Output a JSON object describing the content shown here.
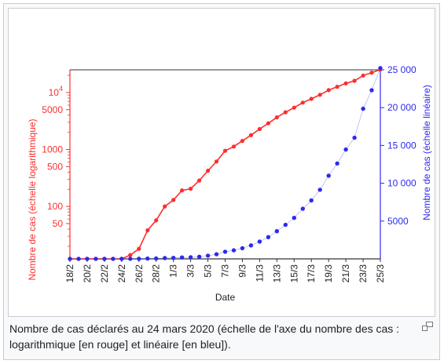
{
  "chart_data": {
    "type": "line",
    "xlabel": "Date",
    "ylabel_left": "Nombre de cas (échelle logarithmique)",
    "ylabel_right": "Nombre de cas (échelle linéaire)",
    "x_tick_labels": [
      "18/2",
      "20/2",
      "22/2",
      "24/2",
      "26/2",
      "28/2",
      "1/3",
      "3/3",
      "5/3",
      "7/3",
      "9/3",
      "11/3",
      "13/3",
      "15/3",
      "17/3",
      "19/3",
      "21/3",
      "23/3",
      "25/3"
    ],
    "left_axis": {
      "scale": "log",
      "range": [
        12,
        25000
      ],
      "ticks": [
        {
          "value": 50,
          "label": "50"
        },
        {
          "value": 100,
          "label": "100"
        },
        {
          "value": 500,
          "label": "500"
        },
        {
          "value": 1000,
          "label": "1000"
        },
        {
          "value": 5000,
          "label": "5000"
        },
        {
          "value": 10000,
          "label": "10",
          "sup": "4"
        }
      ],
      "color": "#ff2e2e"
    },
    "right_axis": {
      "scale": "linear",
      "range": [
        0,
        25000
      ],
      "ticks": [
        {
          "value": 5000,
          "label": "5000"
        },
        {
          "value": 10000,
          "label": "10 000"
        },
        {
          "value": 15000,
          "label": "15 000"
        },
        {
          "value": 20000,
          "label": "20 000"
        },
        {
          "value": 25000,
          "label": "25 000"
        }
      ],
      "color": "#2b2bf0"
    },
    "dates": [
      "18/2",
      "19/2",
      "20/2",
      "21/2",
      "22/2",
      "23/2",
      "24/2",
      "25/2",
      "26/2",
      "27/2",
      "28/2",
      "29/2",
      "1/3",
      "2/3",
      "3/3",
      "4/3",
      "5/3",
      "6/3",
      "7/3",
      "8/3",
      "9/3",
      "10/3",
      "11/3",
      "12/3",
      "13/3",
      "14/3",
      "15/3",
      "16/3",
      "17/3",
      "18/3",
      "19/3",
      "20/3",
      "21/3",
      "22/3",
      "23/3",
      "24/3",
      "25/3"
    ],
    "series": [
      {
        "name": "échelle logarithmique",
        "color": "#ff2e2e",
        "axis": "left",
        "connected": true,
        "values": [
          12,
          12,
          12,
          12,
          12,
          12,
          12,
          14,
          18,
          38,
          57,
          100,
          130,
          191,
          204,
          285,
          423,
          613,
          949,
          1126,
          1412,
          1784,
          2281,
          2876,
          3661,
          4499,
          5423,
          6633,
          7730,
          9134,
          10995,
          12612,
          14459,
          16018,
          19856,
          22302,
          25233
        ]
      },
      {
        "name": "échelle linéaire",
        "color": "#2b2bf0",
        "axis": "right",
        "connected": false,
        "values": [
          12,
          12,
          12,
          12,
          12,
          12,
          12,
          14,
          18,
          38,
          57,
          100,
          130,
          191,
          204,
          285,
          423,
          613,
          949,
          1126,
          1412,
          1784,
          2281,
          2876,
          3661,
          4499,
          5423,
          6633,
          7730,
          9134,
          10995,
          12612,
          14459,
          16018,
          19856,
          22302,
          25233
        ]
      }
    ]
  },
  "caption": "Nombre de cas déclarés au 24 mars 2020 (échelle de l'axe du nombre des cas : logarithmique [en rouge] et linéaire [en bleu]).",
  "magnify_icon": "magnify-clip-icon"
}
